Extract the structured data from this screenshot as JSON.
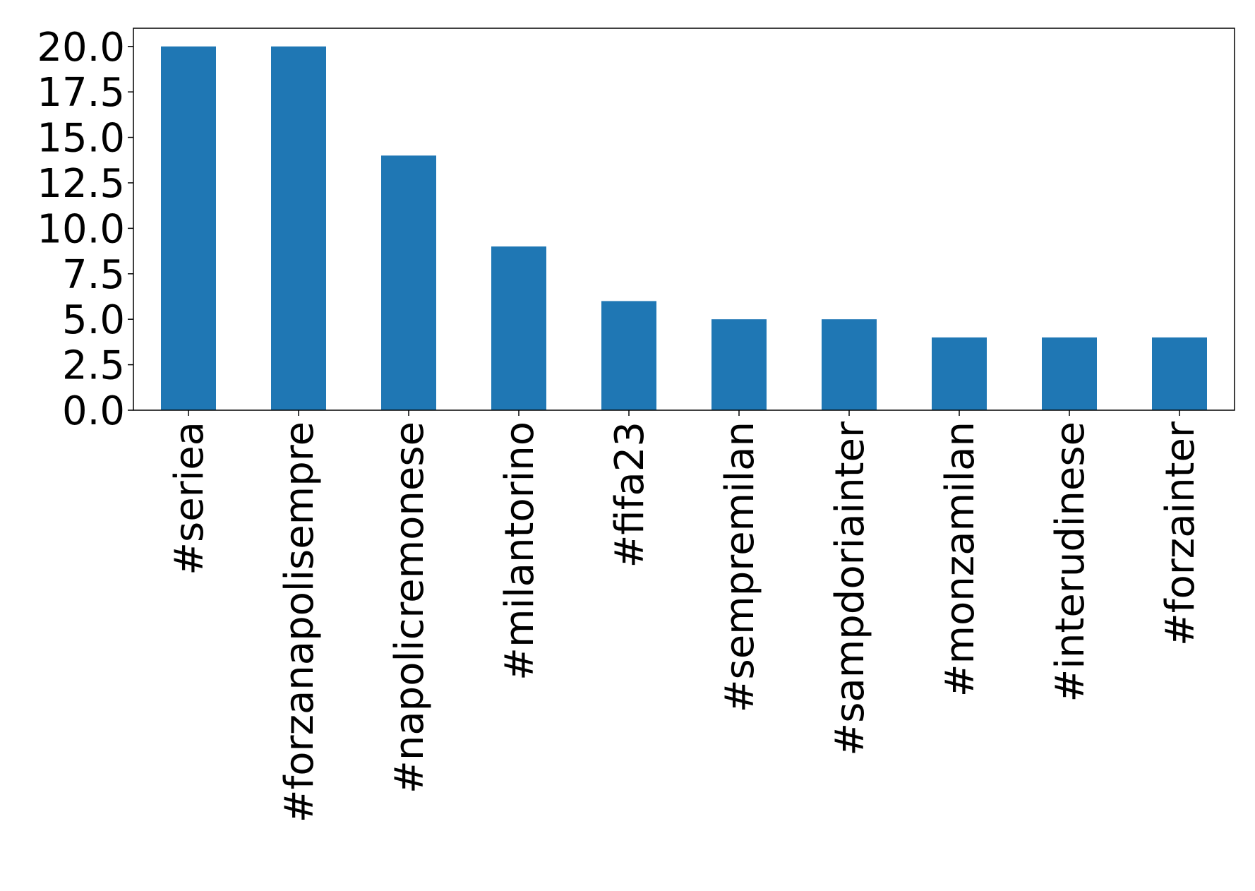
{
  "chart_data": {
    "type": "bar",
    "categories": [
      "#seriea",
      "#forzanapolisempre",
      "#napolicremonese",
      "#milantorino",
      "#fifa23",
      "#sempremilan",
      "#sampdoriainter",
      "#monzamilan",
      "#interudinese",
      "#forzainter"
    ],
    "values": [
      20,
      20,
      14,
      9,
      6,
      5,
      5,
      4,
      4,
      4
    ],
    "color": "#1f77b4",
    "ylim": [
      0,
      21
    ],
    "yticks": [
      {
        "value": 0,
        "label": "0.0"
      },
      {
        "value": 2.5,
        "label": "2.5"
      },
      {
        "value": 5,
        "label": "5.0"
      },
      {
        "value": 7.5,
        "label": "7.5"
      },
      {
        "value": 10,
        "label": "10.0"
      },
      {
        "value": 12.5,
        "label": "12.5"
      },
      {
        "value": 15,
        "label": "15.0"
      },
      {
        "value": 17.5,
        "label": "17.5"
      },
      {
        "value": 20,
        "label": "20.0"
      }
    ],
    "grid": false
  }
}
